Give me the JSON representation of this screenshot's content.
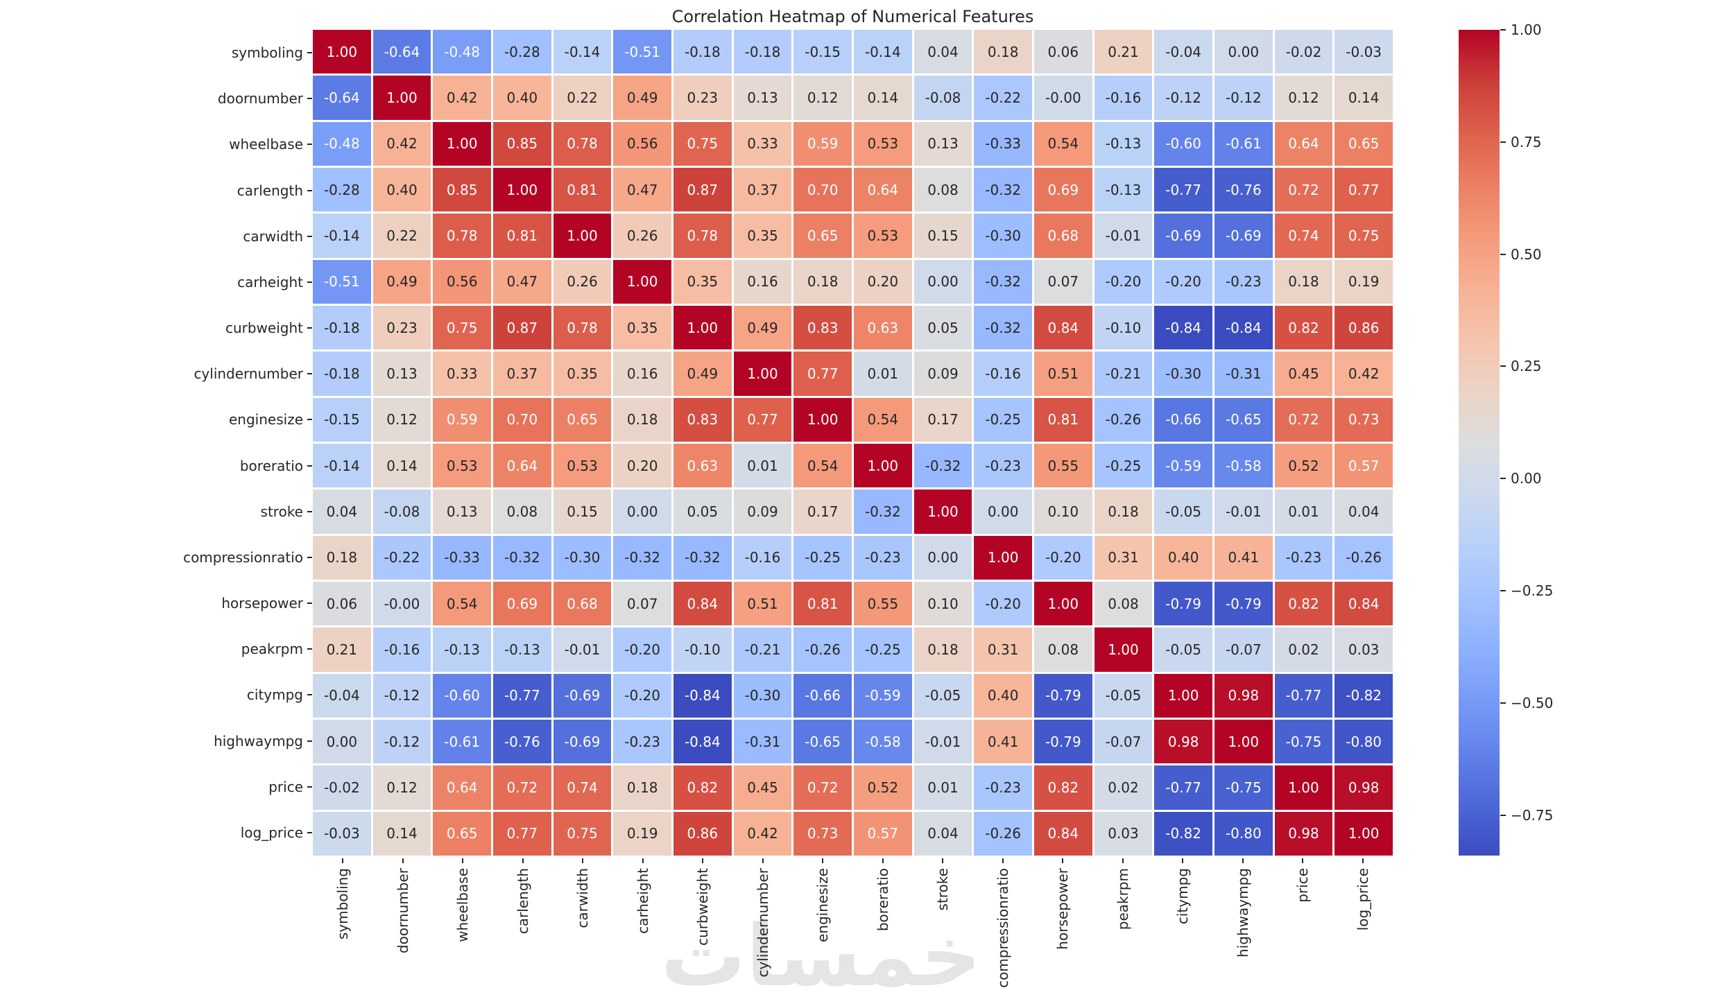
{
  "page": {
    "background": "#ffffff"
  },
  "watermark": {
    "text": "خمسات",
    "color": "#e5e5e8"
  },
  "chart_data": {
    "type": "heatmap",
    "title": "Correlation Heatmap of Numerical Features",
    "features": [
      "symboling",
      "doornumber",
      "wheelbase",
      "carlength",
      "carwidth",
      "carheight",
      "curbweight",
      "cylindernumber",
      "enginesize",
      "boreratio",
      "stroke",
      "compressionratio",
      "horsepower",
      "peakrpm",
      "citympg",
      "highwaympg",
      "price",
      "log_price"
    ],
    "matrix": [
      [
        "1.00",
        "-0.64",
        "-0.48",
        "-0.28",
        "-0.14",
        "-0.51",
        "-0.18",
        "-0.18",
        "-0.15",
        "-0.14",
        "0.04",
        "0.18",
        "0.06",
        "0.21",
        "-0.04",
        "0.00",
        "-0.02",
        "-0.03"
      ],
      [
        "-0.64",
        "1.00",
        "0.42",
        "0.40",
        "0.22",
        "0.49",
        "0.23",
        "0.13",
        "0.12",
        "0.14",
        "-0.08",
        "-0.22",
        "-0.00",
        "-0.16",
        "-0.12",
        "-0.12",
        "0.12",
        "0.14"
      ],
      [
        "-0.48",
        "0.42",
        "1.00",
        "0.85",
        "0.78",
        "0.56",
        "0.75",
        "0.33",
        "0.59",
        "0.53",
        "0.13",
        "-0.33",
        "0.54",
        "-0.13",
        "-0.60",
        "-0.61",
        "0.64",
        "0.65"
      ],
      [
        "-0.28",
        "0.40",
        "0.85",
        "1.00",
        "0.81",
        "0.47",
        "0.87",
        "0.37",
        "0.70",
        "0.64",
        "0.08",
        "-0.32",
        "0.69",
        "-0.13",
        "-0.77",
        "-0.76",
        "0.72",
        "0.77"
      ],
      [
        "-0.14",
        "0.22",
        "0.78",
        "0.81",
        "1.00",
        "0.26",
        "0.78",
        "0.35",
        "0.65",
        "0.53",
        "0.15",
        "-0.30",
        "0.68",
        "-0.01",
        "-0.69",
        "-0.69",
        "0.74",
        "0.75"
      ],
      [
        "-0.51",
        "0.49",
        "0.56",
        "0.47",
        "0.26",
        "1.00",
        "0.35",
        "0.16",
        "0.18",
        "0.20",
        "0.00",
        "-0.32",
        "0.07",
        "-0.20",
        "-0.20",
        "-0.23",
        "0.18",
        "0.19"
      ],
      [
        "-0.18",
        "0.23",
        "0.75",
        "0.87",
        "0.78",
        "0.35",
        "1.00",
        "0.49",
        "0.83",
        "0.63",
        "0.05",
        "-0.32",
        "0.84",
        "-0.10",
        "-0.84",
        "-0.84",
        "0.82",
        "0.86"
      ],
      [
        "-0.18",
        "0.13",
        "0.33",
        "0.37",
        "0.35",
        "0.16",
        "0.49",
        "1.00",
        "0.77",
        "0.01",
        "0.09",
        "-0.16",
        "0.51",
        "-0.21",
        "-0.30",
        "-0.31",
        "0.45",
        "0.42"
      ],
      [
        "-0.15",
        "0.12",
        "0.59",
        "0.70",
        "0.65",
        "0.18",
        "0.83",
        "0.77",
        "1.00",
        "0.54",
        "0.17",
        "-0.25",
        "0.81",
        "-0.26",
        "-0.66",
        "-0.65",
        "0.72",
        "0.73"
      ],
      [
        "-0.14",
        "0.14",
        "0.53",
        "0.64",
        "0.53",
        "0.20",
        "0.63",
        "0.01",
        "0.54",
        "1.00",
        "-0.32",
        "-0.23",
        "0.55",
        "-0.25",
        "-0.59",
        "-0.58",
        "0.52",
        "0.57"
      ],
      [
        "0.04",
        "-0.08",
        "0.13",
        "0.08",
        "0.15",
        "0.00",
        "0.05",
        "0.09",
        "0.17",
        "-0.32",
        "1.00",
        "0.00",
        "0.10",
        "0.18",
        "-0.05",
        "-0.01",
        "0.01",
        "0.04"
      ],
      [
        "0.18",
        "-0.22",
        "-0.33",
        "-0.32",
        "-0.30",
        "-0.32",
        "-0.32",
        "-0.16",
        "-0.25",
        "-0.23",
        "0.00",
        "1.00",
        "-0.20",
        "0.31",
        "0.40",
        "0.41",
        "-0.23",
        "-0.26"
      ],
      [
        "0.06",
        "-0.00",
        "0.54",
        "0.69",
        "0.68",
        "0.07",
        "0.84",
        "0.51",
        "0.81",
        "0.55",
        "0.10",
        "-0.20",
        "1.00",
        "0.08",
        "-0.79",
        "-0.79",
        "0.82",
        "0.84"
      ],
      [
        "0.21",
        "-0.16",
        "-0.13",
        "-0.13",
        "-0.01",
        "-0.20",
        "-0.10",
        "-0.21",
        "-0.26",
        "-0.25",
        "0.18",
        "0.31",
        "0.08",
        "1.00",
        "-0.05",
        "-0.07",
        "0.02",
        "0.03"
      ],
      [
        "-0.04",
        "-0.12",
        "-0.60",
        "-0.77",
        "-0.69",
        "-0.20",
        "-0.84",
        "-0.30",
        "-0.66",
        "-0.59",
        "-0.05",
        "0.40",
        "-0.79",
        "-0.05",
        "1.00",
        "0.98",
        "-0.77",
        "-0.82"
      ],
      [
        "0.00",
        "-0.12",
        "-0.61",
        "-0.76",
        "-0.69",
        "-0.23",
        "-0.84",
        "-0.31",
        "-0.65",
        "-0.58",
        "-0.01",
        "0.41",
        "-0.79",
        "-0.07",
        "0.98",
        "1.00",
        "-0.75",
        "-0.80"
      ],
      [
        "-0.02",
        "0.12",
        "0.64",
        "0.72",
        "0.74",
        "0.18",
        "0.82",
        "0.45",
        "0.72",
        "0.52",
        "0.01",
        "-0.23",
        "0.82",
        "0.02",
        "-0.77",
        "-0.75",
        "1.00",
        "0.98"
      ],
      [
        "-0.03",
        "0.14",
        "0.65",
        "0.77",
        "0.75",
        "0.19",
        "0.86",
        "0.42",
        "0.73",
        "0.57",
        "0.04",
        "-0.26",
        "0.84",
        "0.03",
        "-0.82",
        "-0.80",
        "0.98",
        "1.00"
      ]
    ],
    "vmin": -0.84,
    "vmax": 1.0,
    "colormap": {
      "name": "coolwarm",
      "stops": [
        [
          0.0,
          59,
          76,
          192
        ],
        [
          0.0625,
          77,
          104,
          215
        ],
        [
          0.125,
          98,
          130,
          234
        ],
        [
          0.1875,
          119,
          154,
          247
        ],
        [
          0.25,
          141,
          176,
          254
        ],
        [
          0.3125,
          163,
          194,
          255
        ],
        [
          0.375,
          184,
          208,
          249
        ],
        [
          0.4375,
          204,
          217,
          238
        ],
        [
          0.5,
          221,
          221,
          221
        ],
        [
          0.5625,
          236,
          211,
          197
        ],
        [
          0.625,
          245,
          196,
          173
        ],
        [
          0.6875,
          247,
          177,
          148
        ],
        [
          0.75,
          244,
          154,
          123
        ],
        [
          0.8125,
          236,
          127,
          99
        ],
        [
          0.875,
          222,
          96,
          77
        ],
        [
          0.9375,
          203,
          62,
          56
        ],
        [
          1.0,
          180,
          4,
          38
        ]
      ]
    },
    "colorbar": {
      "position": "right",
      "ticks": [
        {
          "label": "1.00",
          "value": 1.0
        },
        {
          "label": "0.75",
          "value": 0.75
        },
        {
          "label": "0.50",
          "value": 0.5
        },
        {
          "label": "0.25",
          "value": 0.25
        },
        {
          "label": "0.00",
          "value": 0.0
        },
        {
          "label": "−0.25",
          "value": -0.25
        },
        {
          "label": "−0.50",
          "value": -0.5
        },
        {
          "label": "−0.75",
          "value": -0.75
        }
      ]
    },
    "annotation": {
      "dark_text": "#262626",
      "light_text": "#ffffff",
      "luminance_threshold": 0.414
    },
    "grid_line_color": "#ffffff",
    "axis_text_color": "#262626",
    "layout": {
      "grid": "off",
      "legend": "colorbar-right",
      "x_label_rotation": 90
    }
  }
}
